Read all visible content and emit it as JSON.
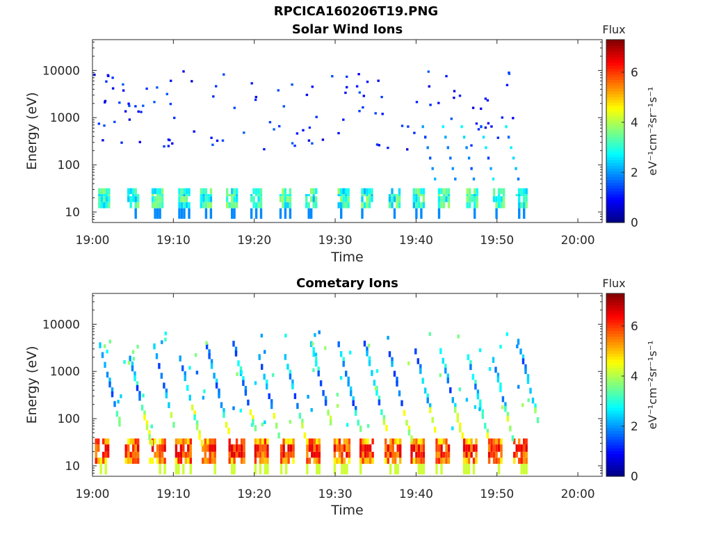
{
  "figure_title": "RPCICA160206T19.PNG",
  "chart_data": [
    {
      "type": "heatmap",
      "title": "Solar Wind Ions",
      "xlabel": "Time",
      "ylabel": "Energy (eV)",
      "x_ticks": [
        "19:00",
        "19:10",
        "19:20",
        "19:30",
        "19:40",
        "19:50",
        "20:00"
      ],
      "xlim": [
        "19:00",
        "20:03"
      ],
      "y_ticks": [
        10,
        100,
        1000,
        10000
      ],
      "ylim": [
        6,
        45000
      ],
      "y_scale": "log",
      "colorbar": {
        "title": "Flux",
        "label": "eV⁻¹cm⁻²sr⁻¹s⁻¹",
        "ticks": [
          0,
          2,
          4,
          6
        ],
        "range": [
          0,
          7.3
        ],
        "colormap": "jet"
      },
      "features": [
        {
          "kind": "low_energy_band",
          "energy_eV": [
            12,
            32
          ],
          "flux_range": [
            2.2,
            3.9
          ],
          "start_minutes": [
            0.7,
            4.3,
            7.3,
            10.6,
            13.3,
            16.5,
            19.5,
            23.1,
            26.3,
            30.3,
            33.2,
            36.6,
            39.6,
            42.7,
            46.2,
            49.5,
            52.3
          ]
        },
        {
          "kind": "sparse_high_energy_hits",
          "energy_eV": [
            200,
            10000
          ],
          "flux_range": [
            0.6,
            1.6
          ]
        }
      ]
    },
    {
      "type": "heatmap",
      "title": "Cometary Ions",
      "xlabel": "Time",
      "ylabel": "Energy (eV)",
      "x_ticks": [
        "19:00",
        "19:10",
        "19:20",
        "19:30",
        "19:40",
        "19:50",
        "20:00"
      ],
      "xlim": [
        "19:00",
        "20:03"
      ],
      "y_ticks": [
        10,
        100,
        1000,
        10000
      ],
      "ylim": [
        6,
        45000
      ],
      "y_scale": "log",
      "colorbar": {
        "title": "Flux",
        "label": "eV⁻¹cm⁻²sr⁻¹s⁻¹",
        "ticks": [
          0,
          2,
          4,
          6
        ],
        "range": [
          0,
          7.3
        ],
        "colormap": "jet"
      },
      "features": [
        {
          "kind": "low_energy_band",
          "energy_eV": [
            11,
            38
          ],
          "flux_range": [
            4.5,
            6.3
          ],
          "start_minutes": [
            0.3,
            4.0,
            7.0,
            10.2,
            13.5,
            16.8,
            20.0,
            23.2,
            26.4,
            29.8,
            33.0,
            36.1,
            39.3,
            42.4,
            45.8,
            48.9,
            52.0
          ]
        },
        {
          "kind": "dispersed_tracks",
          "energy_eV": [
            40,
            5000
          ],
          "flux_range": [
            1.2,
            4.6
          ]
        }
      ]
    }
  ]
}
